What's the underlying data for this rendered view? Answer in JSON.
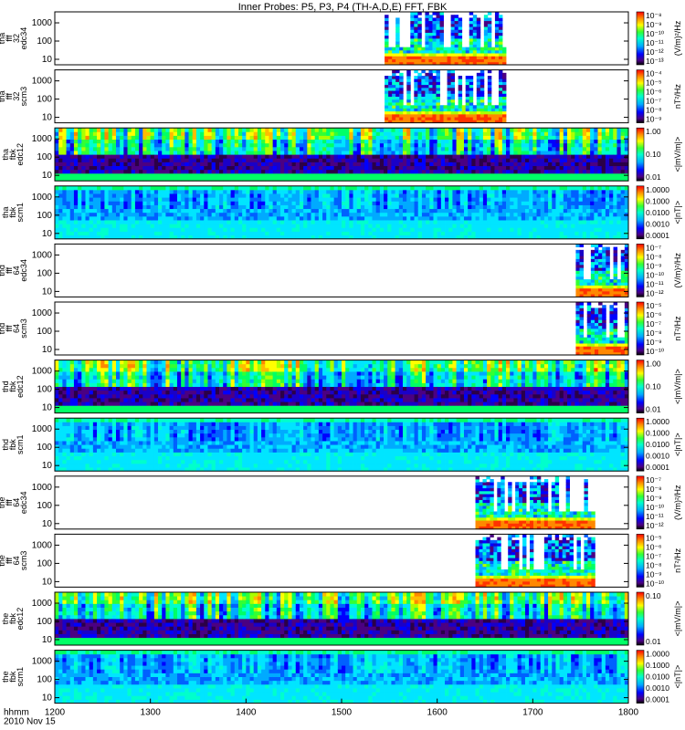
{
  "chart_data": {
    "type": "heatmap",
    "title": "Inner Probes: P5, P3, P4 (TH-A,D,E) FFT, FBK",
    "x_axis": {
      "range": [
        1200,
        1800
      ],
      "ticks": [
        "1200",
        "1300",
        "1400",
        "1500",
        "1600",
        "1700",
        "1800"
      ],
      "label_row": "hhmm",
      "date": "2010 Nov 15"
    },
    "panels": [
      {
        "ylabel": [
          "tha",
          "fff",
          "32",
          "edc34"
        ],
        "yticks": [
          "1000",
          "100",
          "10"
        ],
        "yscale": "log",
        "colorbar_unit": "(V/m)²/Hz",
        "colorbar_ticks": [
          "10⁻⁸",
          "10⁻⁹",
          "10⁻¹⁰",
          "10⁻¹¹",
          "10⁻¹²",
          "10⁻¹³"
        ],
        "data_x_range": [
          1545,
          1672
        ],
        "kind": "fff"
      },
      {
        "ylabel": [
          "tha",
          "fff",
          "32",
          "scm3"
        ],
        "yticks": [
          "1000",
          "100",
          "10"
        ],
        "yscale": "log",
        "colorbar_unit": "nT²/Hz",
        "colorbar_ticks": [
          "10⁻⁴",
          "10⁻⁵",
          "10⁻⁶",
          "10⁻⁷",
          "10⁻⁸",
          "10⁻⁹"
        ],
        "data_x_range": [
          1545,
          1672
        ],
        "kind": "fff"
      },
      {
        "ylabel": [
          "tha",
          "fbk",
          "edc12"
        ],
        "yticks": [
          "1000",
          "100",
          "10"
        ],
        "yscale": "log",
        "colorbar_unit": "<|mV/m|>",
        "colorbar_ticks": [
          "1.00",
          "0.10",
          "0.01"
        ],
        "data_x_range": [
          1200,
          1800
        ],
        "kind": "fbk_e"
      },
      {
        "ylabel": [
          "tha",
          "fbk",
          "scm1"
        ],
        "yticks": [
          "1000",
          "100",
          "10"
        ],
        "yscale": "log",
        "colorbar_unit": "<|nT|>",
        "colorbar_ticks": [
          "1.0000",
          "0.1000",
          "0.0100",
          "0.0010",
          "0.0001"
        ],
        "data_x_range": [
          1200,
          1800
        ],
        "kind": "fbk_b"
      },
      {
        "ylabel": [
          "thd",
          "fff",
          "64",
          "edc34"
        ],
        "yticks": [
          "1000",
          "100",
          "10"
        ],
        "yscale": "log",
        "colorbar_unit": "(V/m)²/Hz",
        "colorbar_ticks": [
          "10⁻⁷",
          "10⁻⁸",
          "10⁻⁹",
          "10⁻¹⁰",
          "10⁻¹¹",
          "10⁻¹²"
        ],
        "data_x_range": [
          1745,
          1800
        ],
        "kind": "fff"
      },
      {
        "ylabel": [
          "thd",
          "fff",
          "64",
          "scm3"
        ],
        "yticks": [
          "1000",
          "100",
          "10"
        ],
        "yscale": "log",
        "colorbar_unit": "nT²/Hz",
        "colorbar_ticks": [
          "10⁻⁵",
          "10⁻⁶",
          "10⁻⁷",
          "10⁻⁸",
          "10⁻⁹",
          "10⁻¹⁰"
        ],
        "data_x_range": [
          1745,
          1800
        ],
        "kind": "fff"
      },
      {
        "ylabel": [
          "thd",
          "fbk",
          "edc12"
        ],
        "yticks": [
          "1000",
          "100",
          "10"
        ],
        "yscale": "log",
        "colorbar_unit": "<|mV/m|>",
        "colorbar_ticks": [
          "1.00",
          "0.10",
          "0.01"
        ],
        "data_x_range": [
          1200,
          1800
        ],
        "kind": "fbk_e"
      },
      {
        "ylabel": [
          "thd",
          "fbk",
          "scm1"
        ],
        "yticks": [
          "1000",
          "100",
          "10"
        ],
        "yscale": "log",
        "colorbar_unit": "<|nT|>",
        "colorbar_ticks": [
          "1.0000",
          "0.1000",
          "0.0100",
          "0.0010",
          "0.0001"
        ],
        "data_x_range": [
          1200,
          1800
        ],
        "kind": "fbk_b"
      },
      {
        "ylabel": [
          "the",
          "fff",
          "64",
          "edc34"
        ],
        "yticks": [
          "1000",
          "100",
          "10"
        ],
        "yscale": "log",
        "colorbar_unit": "(V/m)²/Hz",
        "colorbar_ticks": [
          "10⁻⁷",
          "10⁻⁸",
          "10⁻⁹",
          "10⁻¹⁰",
          "10⁻¹¹",
          "10⁻¹²"
        ],
        "data_x_range": [
          1640,
          1765
        ],
        "kind": "fff"
      },
      {
        "ylabel": [
          "the",
          "fff",
          "64",
          "scm3"
        ],
        "yticks": [
          "1000",
          "100",
          "10"
        ],
        "yscale": "log",
        "colorbar_unit": "nT²/Hz",
        "colorbar_ticks": [
          "10⁻⁵",
          "10⁻⁶",
          "10⁻⁷",
          "10⁻⁸",
          "10⁻⁹",
          "10⁻¹⁰"
        ],
        "data_x_range": [
          1640,
          1765
        ],
        "kind": "fff"
      },
      {
        "ylabel": [
          "the",
          "fbk",
          "edc12"
        ],
        "yticks": [
          "1000",
          "100",
          "10"
        ],
        "yscale": "log",
        "colorbar_unit": "<|mV/m|>",
        "colorbar_ticks": [
          "0.10",
          "0.01"
        ],
        "data_x_range": [
          1200,
          1800
        ],
        "kind": "fbk_e"
      },
      {
        "ylabel": [
          "the",
          "fbk",
          "scm1"
        ],
        "yticks": [
          "1000",
          "100",
          "10"
        ],
        "yscale": "log",
        "colorbar_unit": "<|nT|>",
        "colorbar_ticks": [
          "1.0000",
          "0.1000",
          "0.0100",
          "0.0010",
          "0.0001"
        ],
        "data_x_range": [
          1200,
          1800
        ],
        "kind": "fbk_b"
      }
    ]
  }
}
